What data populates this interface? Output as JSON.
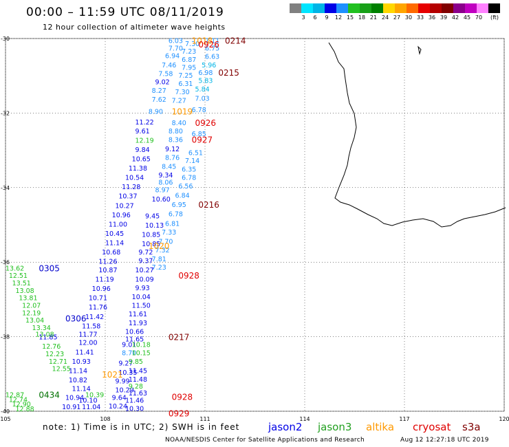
{
  "title": "00:00 – 11:59 UTC 08/11/2019",
  "subtitle": "12 hour collection of altimeter wave heights",
  "legend": {
    "colors": [
      "#808080",
      "#00e5ff",
      "#00b4e6",
      "#0000e6",
      "#1e90ff",
      "#22c020",
      "#18a018",
      "#008000",
      "#ffd700",
      "#ffa500",
      "#ff6a00",
      "#e60000",
      "#b40000",
      "#800000",
      "#8b008b",
      "#c000c0",
      "#ff80ff",
      "#000000"
    ],
    "labels": [
      "3",
      "6",
      "9",
      "12",
      "15",
      "18",
      "21",
      "24",
      "27",
      "30",
      "33",
      "36",
      "39",
      "42",
      "45",
      "70"
    ],
    "unit": "(ft)"
  },
  "axes": {
    "lon_ticks": [
      "105",
      "108",
      "111",
      "114",
      "117",
      "120"
    ],
    "lat_ticks": [
      "-30",
      "-32",
      "-34",
      "-36",
      "-38",
      "-40"
    ]
  },
  "time_labels": [
    {
      "text": "1018",
      "color": "#ff9900",
      "lon": 110.6,
      "lat": -30.05
    },
    {
      "text": "0926",
      "color": "#e00000",
      "lon": 110.8,
      "lat": -30.15
    },
    {
      "text": "0214",
      "color": "#800000",
      "lon": 111.6,
      "lat": -30.05
    },
    {
      "text": "0215",
      "color": "#800000",
      "lon": 111.4,
      "lat": -30.9
    },
    {
      "text": "1019",
      "color": "#ff9900",
      "lon": 110.0,
      "lat": -31.95
    },
    {
      "text": "0926",
      "color": "#e00000",
      "lon": 110.7,
      "lat": -32.25
    },
    {
      "text": "0927",
      "color": "#e00000",
      "lon": 110.6,
      "lat": -32.7
    },
    {
      "text": "0216",
      "color": "#800000",
      "lon": 110.8,
      "lat": -34.45
    },
    {
      "text": "1020",
      "color": "#ff9900",
      "lon": 109.3,
      "lat": -35.55
    },
    {
      "text": "0305",
      "color": "#0000cc",
      "lon": 106.0,
      "lat": -36.15
    },
    {
      "text": "0928",
      "color": "#e00000",
      "lon": 110.2,
      "lat": -36.35
    },
    {
      "text": "0306",
      "color": "#0000cc",
      "lon": 106.8,
      "lat": -37.5
    },
    {
      "text": "0217",
      "color": "#800000",
      "lon": 109.9,
      "lat": -38.0
    },
    {
      "text": "1021",
      "color": "#ff9900",
      "lon": 107.9,
      "lat": -39.0
    },
    {
      "text": "0434",
      "color": "#007000",
      "lon": 106.0,
      "lat": -39.55
    },
    {
      "text": "0928",
      "color": "#e00000",
      "lon": 110.0,
      "lat": -39.6
    },
    {
      "text": "0929",
      "color": "#e00000",
      "lon": 109.9,
      "lat": -40.05
    }
  ],
  "swh_values": [
    {
      "t": "6.03",
      "c": "#1e90ff",
      "lon": 109.9,
      "lat": -30.05
    },
    {
      "t": "7.30",
      "c": "#1e90ff",
      "lon": 110.4,
      "lat": -30.13
    },
    {
      "t": "7.11",
      "c": "#1e90ff",
      "lon": 111.0,
      "lat": -30.05
    },
    {
      "t": "7.70",
      "c": "#1e90ff",
      "lon": 109.9,
      "lat": -30.25
    },
    {
      "t": "7.23",
      "c": "#1e90ff",
      "lon": 110.3,
      "lat": -30.33
    },
    {
      "t": "6.75",
      "c": "#1e90ff",
      "lon": 111.0,
      "lat": -30.25
    },
    {
      "t": "6.94",
      "c": "#1e90ff",
      "lon": 109.8,
      "lat": -30.45
    },
    {
      "t": "6.87",
      "c": "#1e90ff",
      "lon": 110.3,
      "lat": -30.55
    },
    {
      "t": "6.63",
      "c": "#1e90ff",
      "lon": 111.0,
      "lat": -30.47
    },
    {
      "t": "7.46",
      "c": "#1e90ff",
      "lon": 109.7,
      "lat": -30.7
    },
    {
      "t": "7.95",
      "c": "#1e90ff",
      "lon": 110.3,
      "lat": -30.77
    },
    {
      "t": "5.96",
      "c": "#00b4e6",
      "lon": 110.9,
      "lat": -30.7
    },
    {
      "t": "7.58",
      "c": "#1e90ff",
      "lon": 109.6,
      "lat": -30.93
    },
    {
      "t": "7.25",
      "c": "#1e90ff",
      "lon": 110.2,
      "lat": -30.98
    },
    {
      "t": "6.98",
      "c": "#1e90ff",
      "lon": 110.8,
      "lat": -30.9
    },
    {
      "t": "9.02",
      "c": "#0000e6",
      "lon": 109.5,
      "lat": -31.15
    },
    {
      "t": "6.31",
      "c": "#1e90ff",
      "lon": 110.2,
      "lat": -31.2
    },
    {
      "t": "5.83",
      "c": "#00b4e6",
      "lon": 110.8,
      "lat": -31.12
    },
    {
      "t": "8.27",
      "c": "#1e90ff",
      "lon": 109.4,
      "lat": -31.38
    },
    {
      "t": "7.30",
      "c": "#1e90ff",
      "lon": 110.1,
      "lat": -31.42
    },
    {
      "t": "5.84",
      "c": "#00b4e6",
      "lon": 110.7,
      "lat": -31.35
    },
    {
      "t": "7.62",
      "c": "#1e90ff",
      "lon": 109.4,
      "lat": -31.62
    },
    {
      "t": "7.27",
      "c": "#1e90ff",
      "lon": 110.0,
      "lat": -31.65
    },
    {
      "t": "7.03",
      "c": "#1e90ff",
      "lon": 110.7,
      "lat": -31.6
    },
    {
      "t": "8.90",
      "c": "#1e90ff",
      "lon": 109.3,
      "lat": -31.95
    },
    {
      "t": "6.78",
      "c": "#1e90ff",
      "lon": 110.6,
      "lat": -31.9
    },
    {
      "t": "11.22",
      "c": "#0000e6",
      "lon": 108.9,
      "lat": -32.23
    },
    {
      "t": "8.40",
      "c": "#1e90ff",
      "lon": 110.0,
      "lat": -32.25
    },
    {
      "t": "9.61",
      "c": "#0000e6",
      "lon": 108.9,
      "lat": -32.47
    },
    {
      "t": "8.80",
      "c": "#1e90ff",
      "lon": 109.9,
      "lat": -32.47
    },
    {
      "t": "6.85",
      "c": "#1e90ff",
      "lon": 110.6,
      "lat": -32.55
    },
    {
      "t": "12.19",
      "c": "#22c020",
      "lon": 108.9,
      "lat": -32.72
    },
    {
      "t": "8.36",
      "c": "#1e90ff",
      "lon": 109.9,
      "lat": -32.7
    },
    {
      "t": "9.84",
      "c": "#0000e6",
      "lon": 108.9,
      "lat": -32.97
    },
    {
      "t": "9.12",
      "c": "#0000e6",
      "lon": 109.8,
      "lat": -32.95
    },
    {
      "t": "6.51",
      "c": "#1e90ff",
      "lon": 110.5,
      "lat": -33.05
    },
    {
      "t": "10.65",
      "c": "#0000e6",
      "lon": 108.8,
      "lat": -33.22
    },
    {
      "t": "8.76",
      "c": "#1e90ff",
      "lon": 109.8,
      "lat": -33.18
    },
    {
      "t": "7.14",
      "c": "#1e90ff",
      "lon": 110.4,
      "lat": -33.27
    },
    {
      "t": "11.38",
      "c": "#0000e6",
      "lon": 108.7,
      "lat": -33.47
    },
    {
      "t": "8.45",
      "c": "#1e90ff",
      "lon": 109.7,
      "lat": -33.42
    },
    {
      "t": "6.35",
      "c": "#1e90ff",
      "lon": 110.3,
      "lat": -33.5
    },
    {
      "t": "10.54",
      "c": "#0000e6",
      "lon": 108.6,
      "lat": -33.72
    },
    {
      "t": "9.34",
      "c": "#0000e6",
      "lon": 109.6,
      "lat": -33.65
    },
    {
      "t": "6.78",
      "c": "#1e90ff",
      "lon": 110.3,
      "lat": -33.72
    },
    {
      "t": "8.06",
      "c": "#1e90ff",
      "lon": 109.6,
      "lat": -33.85
    },
    {
      "t": "11.28",
      "c": "#0000e6",
      "lon": 108.5,
      "lat": -33.97
    },
    {
      "t": "6.56",
      "c": "#1e90ff",
      "lon": 110.2,
      "lat": -33.95
    },
    {
      "t": "8.97",
      "c": "#1e90ff",
      "lon": 109.5,
      "lat": -34.05
    },
    {
      "t": "10.37",
      "c": "#0000e6",
      "lon": 108.4,
      "lat": -34.22
    },
    {
      "t": "6.84",
      "c": "#1e90ff",
      "lon": 110.1,
      "lat": -34.2
    },
    {
      "t": "10.60",
      "c": "#0000e6",
      "lon": 109.4,
      "lat": -34.3
    },
    {
      "t": "10.27",
      "c": "#0000e6",
      "lon": 108.3,
      "lat": -34.47
    },
    {
      "t": "6.95",
      "c": "#1e90ff",
      "lon": 110.0,
      "lat": -34.45
    },
    {
      "t": "10.96",
      "c": "#0000e6",
      "lon": 108.2,
      "lat": -34.72
    },
    {
      "t": "9.45",
      "c": "#0000e6",
      "lon": 109.2,
      "lat": -34.75
    },
    {
      "t": "6.78",
      "c": "#1e90ff",
      "lon": 109.9,
      "lat": -34.7
    },
    {
      "t": "11.00",
      "c": "#0000e6",
      "lon": 108.1,
      "lat": -34.97
    },
    {
      "t": "10.13",
      "c": "#0000e6",
      "lon": 109.2,
      "lat": -35.0
    },
    {
      "t": "6.81",
      "c": "#1e90ff",
      "lon": 109.8,
      "lat": -34.95
    },
    {
      "t": "10.45",
      "c": "#0000e6",
      "lon": 108.0,
      "lat": -35.22
    },
    {
      "t": "10.85",
      "c": "#0000e6",
      "lon": 109.1,
      "lat": -35.25
    },
    {
      "t": "7.33",
      "c": "#1e90ff",
      "lon": 109.7,
      "lat": -35.18
    },
    {
      "t": "11.14",
      "c": "#0000e6",
      "lon": 108.0,
      "lat": -35.47
    },
    {
      "t": "10.85",
      "c": "#0000e6",
      "lon": 109.1,
      "lat": -35.5
    },
    {
      "t": "7.70",
      "c": "#1e90ff",
      "lon": 109.6,
      "lat": -35.43
    },
    {
      "t": "10.68",
      "c": "#0000e6",
      "lon": 107.9,
      "lat": -35.72
    },
    {
      "t": "9.72",
      "c": "#0000e6",
      "lon": 109.0,
      "lat": -35.72
    },
    {
      "t": "7.32",
      "c": "#1e90ff",
      "lon": 109.5,
      "lat": -35.66
    },
    {
      "t": "11.26",
      "c": "#0000e6",
      "lon": 107.8,
      "lat": -35.97
    },
    {
      "t": "9.37",
      "c": "#0000e6",
      "lon": 109.0,
      "lat": -35.95
    },
    {
      "t": "7.81",
      "c": "#1e90ff",
      "lon": 109.4,
      "lat": -35.9
    },
    {
      "t": "10.87",
      "c": "#0000e6",
      "lon": 107.8,
      "lat": -36.2
    },
    {
      "t": "10.27",
      "c": "#0000e6",
      "lon": 108.9,
      "lat": -36.2
    },
    {
      "t": "7.23",
      "c": "#1e90ff",
      "lon": 109.4,
      "lat": -36.13
    },
    {
      "t": "11.19",
      "c": "#0000e6",
      "lon": 107.7,
      "lat": -36.45
    },
    {
      "t": "10.09",
      "c": "#0000e6",
      "lon": 108.9,
      "lat": -36.45
    },
    {
      "t": "10.96",
      "c": "#0000e6",
      "lon": 107.6,
      "lat": -36.7
    },
    {
      "t": "9.93",
      "c": "#0000e6",
      "lon": 108.9,
      "lat": -36.68
    },
    {
      "t": "10.71",
      "c": "#0000e6",
      "lon": 107.5,
      "lat": -36.95
    },
    {
      "t": "10.04",
      "c": "#0000e6",
      "lon": 108.8,
      "lat": -36.92
    },
    {
      "t": "11.76",
      "c": "#0000e6",
      "lon": 107.5,
      "lat": -37.2
    },
    {
      "t": "11.50",
      "c": "#0000e6",
      "lon": 108.8,
      "lat": -37.15
    },
    {
      "t": "11.42",
      "c": "#0000e6",
      "lon": 107.4,
      "lat": -37.45
    },
    {
      "t": "11.61",
      "c": "#0000e6",
      "lon": 108.7,
      "lat": -37.38
    },
    {
      "t": "11.58",
      "c": "#0000e6",
      "lon": 107.3,
      "lat": -37.7
    },
    {
      "t": "11.93",
      "c": "#0000e6",
      "lon": 108.7,
      "lat": -37.62
    },
    {
      "t": "11.77",
      "c": "#0000e6",
      "lon": 107.2,
      "lat": -37.92
    },
    {
      "t": "10.66",
      "c": "#0000e6",
      "lon": 108.6,
      "lat": -37.85
    },
    {
      "t": "11.85",
      "c": "#0000e6",
      "lon": 106.0,
      "lat": -38.0
    },
    {
      "t": "11.65",
      "c": "#0000e6",
      "lon": 108.6,
      "lat": -38.05
    },
    {
      "t": "12.00",
      "c": "#0000e6",
      "lon": 107.2,
      "lat": -38.15
    },
    {
      "t": "9.01",
      "c": "#0000e6",
      "lon": 108.5,
      "lat": -38.2
    },
    {
      "t": "11.41",
      "c": "#0000e6",
      "lon": 107.1,
      "lat": -38.4
    },
    {
      "t": "8.70",
      "c": "#1e90ff",
      "lon": 108.5,
      "lat": -38.42
    },
    {
      "t": "10.93",
      "c": "#0000e6",
      "lon": 107.0,
      "lat": -38.65
    },
    {
      "t": "9.27",
      "c": "#0000e6",
      "lon": 108.4,
      "lat": -38.7
    },
    {
      "t": "11.14",
      "c": "#0000e6",
      "lon": 106.9,
      "lat": -38.9
    },
    {
      "t": "10.35",
      "c": "#0000e6",
      "lon": 108.4,
      "lat": -38.95
    },
    {
      "t": "11.45",
      "c": "#0000e6",
      "lon": 108.7,
      "lat": -38.9
    },
    {
      "t": "10.82",
      "c": "#0000e6",
      "lon": 106.9,
      "lat": -39.15
    },
    {
      "t": "9.99",
      "c": "#0000e6",
      "lon": 108.3,
      "lat": -39.18
    },
    {
      "t": "11.48",
      "c": "#0000e6",
      "lon": 108.7,
      "lat": -39.13
    },
    {
      "t": "11.14",
      "c": "#0000e6",
      "lon": 107.0,
      "lat": -39.38
    },
    {
      "t": "10.29",
      "c": "#0000e6",
      "lon": 108.3,
      "lat": -39.42
    },
    {
      "t": "11.63",
      "c": "#0000e6",
      "lon": 108.7,
      "lat": -39.5
    },
    {
      "t": "10.94",
      "c": "#0000e6",
      "lon": 106.8,
      "lat": -39.62
    },
    {
      "t": "10.10",
      "c": "#0000e6",
      "lon": 107.2,
      "lat": -39.7
    },
    {
      "t": "9.64",
      "c": "#0000e6",
      "lon": 108.2,
      "lat": -39.62
    },
    {
      "t": "11.46",
      "c": "#0000e6",
      "lon": 108.6,
      "lat": -39.7
    },
    {
      "t": "10.91",
      "c": "#0000e6",
      "lon": 106.7,
      "lat": -39.87
    },
    {
      "t": "11.04",
      "c": "#0000e6",
      "lon": 107.3,
      "lat": -39.87
    },
    {
      "t": "10.24",
      "c": "#0000e6",
      "lon": 108.1,
      "lat": -39.85
    },
    {
      "t": "10.30",
      "c": "#0000e6",
      "lon": 108.6,
      "lat": -39.92
    },
    {
      "t": "13.62",
      "c": "#22c020",
      "lon": 105.0,
      "lat": -36.15
    },
    {
      "t": "12.51",
      "c": "#22c020",
      "lon": 105.1,
      "lat": -36.35
    },
    {
      "t": "13.51",
      "c": "#22c020",
      "lon": 105.2,
      "lat": -36.55
    },
    {
      "t": "13.08",
      "c": "#22c020",
      "lon": 105.3,
      "lat": -36.75
    },
    {
      "t": "13.81",
      "c": "#22c020",
      "lon": 105.4,
      "lat": -36.95
    },
    {
      "t": "12.07",
      "c": "#22c020",
      "lon": 105.5,
      "lat": -37.15
    },
    {
      "t": "12.19",
      "c": "#22c020",
      "lon": 105.5,
      "lat": -37.35
    },
    {
      "t": "13.04",
      "c": "#22c020",
      "lon": 105.6,
      "lat": -37.55
    },
    {
      "t": "13.34",
      "c": "#22c020",
      "lon": 105.8,
      "lat": -37.75
    },
    {
      "t": "13.08",
      "c": "#22c020",
      "lon": 105.9,
      "lat": -37.92
    },
    {
      "t": "12.76",
      "c": "#22c020",
      "lon": 106.1,
      "lat": -38.25
    },
    {
      "t": "12.23",
      "c": "#22c020",
      "lon": 106.2,
      "lat": -38.45
    },
    {
      "t": "12.71",
      "c": "#22c020",
      "lon": 106.3,
      "lat": -38.65
    },
    {
      "t": "12.55",
      "c": "#22c020",
      "lon": 106.4,
      "lat": -38.85
    },
    {
      "t": "12.87",
      "c": "#22c020",
      "lon": 105.0,
      "lat": -39.55
    },
    {
      "t": "12.74",
      "c": "#22c020",
      "lon": 105.1,
      "lat": -39.68
    },
    {
      "t": "12.90",
      "c": "#22c020",
      "lon": 105.2,
      "lat": -39.8
    },
    {
      "t": "12.88",
      "c": "#22c020",
      "lon": 105.3,
      "lat": -39.93
    },
    {
      "t": "10.18",
      "c": "#22c020",
      "lon": 108.8,
      "lat": -38.2
    },
    {
      "t": "10.15",
      "c": "#22c020",
      "lon": 108.8,
      "lat": -38.42
    },
    {
      "t": "9.85",
      "c": "#22c020",
      "lon": 108.7,
      "lat": -38.65
    },
    {
      "t": "10.39",
      "c": "#22c020",
      "lon": 107.4,
      "lat": -39.55
    },
    {
      "t": "9.28",
      "c": "#22c020",
      "lon": 108.7,
      "lat": -39.32
    }
  ],
  "satellites": [
    {
      "name": "jason2",
      "color": "#0000e6"
    },
    {
      "name": "jason3",
      "color": "#22a020"
    },
    {
      "name": "altika",
      "color": "#ff9900"
    },
    {
      "name": "cryosat",
      "color": "#e00000"
    },
    {
      "name": "s3a",
      "color": "#800000"
    }
  ],
  "note": "note:  1) Time is in UTC;  2) SWH is in feet",
  "credit": "NOAA/NESDIS Center for Satellite Applications and Research",
  "timestamp": "Aug 12 12:27:18 UTC 2019"
}
